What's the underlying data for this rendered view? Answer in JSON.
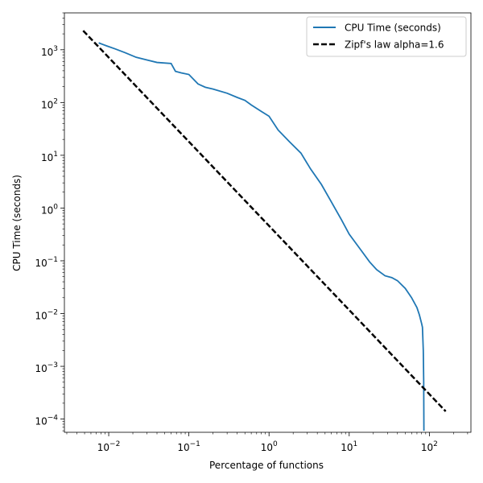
{
  "chart_data": {
    "type": "line",
    "title": "",
    "xlabel": "Percentage of functions",
    "ylabel": "CPU Time (seconds)",
    "xscale": "log",
    "yscale": "log",
    "xlim": [
      0.0028,
      330
    ],
    "ylim": [
      5.62e-05,
      5000
    ],
    "grid": false,
    "legend_placement": "top-right",
    "x_ticks": [
      {
        "value": 0.01,
        "base": "10",
        "exp": "−2"
      },
      {
        "value": 0.1,
        "base": "10",
        "exp": "−1"
      },
      {
        "value": 1,
        "base": "10",
        "exp": "0"
      },
      {
        "value": 10,
        "base": "10",
        "exp": "1"
      },
      {
        "value": 100,
        "base": "10",
        "exp": "2"
      }
    ],
    "y_ticks": [
      {
        "value": 0.0001,
        "base": "10",
        "exp": "−4"
      },
      {
        "value": 0.001,
        "base": "10",
        "exp": "−3"
      },
      {
        "value": 0.01,
        "base": "10",
        "exp": "−2"
      },
      {
        "value": 0.1,
        "base": "10",
        "exp": "−1"
      },
      {
        "value": 1,
        "base": "10",
        "exp": "0"
      },
      {
        "value": 10,
        "base": "10",
        "exp": "1"
      },
      {
        "value": 100,
        "base": "10",
        "exp": "2"
      },
      {
        "value": 1000,
        "base": "10",
        "exp": "3"
      }
    ],
    "series": [
      {
        "name": "CPU Time (seconds)",
        "color": "#1f77b4",
        "style": "solid",
        "points": [
          [
            0.0075,
            1350
          ],
          [
            0.0095,
            1180
          ],
          [
            0.012,
            1040
          ],
          [
            0.016,
            880
          ],
          [
            0.022,
            720
          ],
          [
            0.03,
            640
          ],
          [
            0.04,
            575
          ],
          [
            0.06,
            550
          ],
          [
            0.068,
            390
          ],
          [
            0.08,
            365
          ],
          [
            0.1,
            340
          ],
          [
            0.13,
            225
          ],
          [
            0.16,
            195
          ],
          [
            0.2,
            180
          ],
          [
            0.3,
            150
          ],
          [
            0.4,
            125
          ],
          [
            0.5,
            110
          ],
          [
            0.6,
            90
          ],
          [
            0.8,
            68
          ],
          [
            1.0,
            55
          ],
          [
            1.3,
            30
          ],
          [
            1.8,
            18
          ],
          [
            2.5,
            11
          ],
          [
            3.3,
            5.5
          ],
          [
            4.5,
            2.8
          ],
          [
            6,
            1.3
          ],
          [
            8,
            0.6
          ],
          [
            10,
            0.32
          ],
          [
            14,
            0.16
          ],
          [
            18,
            0.095
          ],
          [
            22,
            0.068
          ],
          [
            28,
            0.052
          ],
          [
            34,
            0.048
          ],
          [
            40,
            0.042
          ],
          [
            50,
            0.03
          ],
          [
            60,
            0.02
          ],
          [
            70,
            0.013
          ],
          [
            75,
            0.0095
          ],
          [
            80,
            0.0065
          ],
          [
            82,
            0.0055
          ],
          [
            84,
            0.002
          ],
          [
            85,
            0.0005
          ],
          [
            85.5,
            6e-05
          ]
        ]
      },
      {
        "name": "Zipf's law alpha=1.6",
        "color": "#000000",
        "style": "dashed",
        "points": [
          [
            0.0048,
            2300
          ],
          [
            160,
            0.00014
          ]
        ]
      }
    ]
  }
}
